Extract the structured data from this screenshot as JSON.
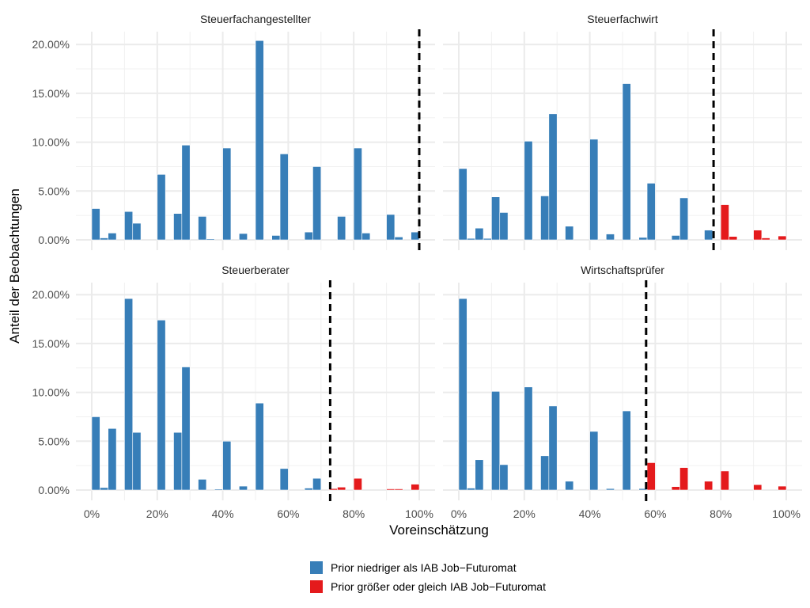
{
  "chart_data": {
    "type": "bar",
    "subtype": "faceted-histogram",
    "xlabel": "Voreinschätzung",
    "ylabel": "Anteil der Beobachtungen",
    "xlim": [
      0,
      100
    ],
    "ylim": [
      0,
      21
    ],
    "bin_width": 2.5,
    "x_ticks": [
      "0%",
      "20%",
      "40%",
      "60%",
      "80%",
      "100%"
    ],
    "x_tick_values": [
      0,
      20,
      40,
      60,
      80,
      100
    ],
    "y_ticks": [
      "0.00%",
      "5.00%",
      "10.00%",
      "15.00%",
      "20.00%"
    ],
    "y_tick_values": [
      0,
      5,
      10,
      15,
      20
    ],
    "grid": true,
    "legend": {
      "position": "bottom",
      "entries": [
        {
          "label": "Prior niedriger als IAB Job−Futuromat",
          "color": "#377eb8"
        },
        {
          "label": "Prior größer oder gleich IAB Job−Futuromat",
          "color": "#e41a1c"
        }
      ]
    },
    "reference_line": "dashed vertical line = IAB Job-Futuromat value",
    "panels": [
      {
        "title": "Steuerfachangestellter",
        "reference_x": 100,
        "bins": [
          {
            "x": 0,
            "value": 3.2,
            "group": 0
          },
          {
            "x": 2.5,
            "value": 0.2,
            "group": 0
          },
          {
            "x": 5,
            "value": 0.7,
            "group": 0
          },
          {
            "x": 10,
            "value": 2.9,
            "group": 0
          },
          {
            "x": 12.5,
            "value": 1.7,
            "group": 0
          },
          {
            "x": 20,
            "value": 6.7,
            "group": 0
          },
          {
            "x": 25,
            "value": 2.7,
            "group": 0
          },
          {
            "x": 27.5,
            "value": 9.7,
            "group": 0
          },
          {
            "x": 32.5,
            "value": 2.4,
            "group": 0
          },
          {
            "x": 35,
            "value": 0.1,
            "group": 0
          },
          {
            "x": 40,
            "value": 9.4,
            "group": 0
          },
          {
            "x": 45,
            "value": 0.65,
            "group": 0
          },
          {
            "x": 50,
            "value": 20.4,
            "group": 0
          },
          {
            "x": 55,
            "value": 0.45,
            "group": 0
          },
          {
            "x": 57.5,
            "value": 8.8,
            "group": 0
          },
          {
            "x": 65,
            "value": 0.8,
            "group": 0
          },
          {
            "x": 67.5,
            "value": 7.5,
            "group": 0
          },
          {
            "x": 75,
            "value": 2.4,
            "group": 0
          },
          {
            "x": 80,
            "value": 9.4,
            "group": 0
          },
          {
            "x": 82.5,
            "value": 0.7,
            "group": 0
          },
          {
            "x": 90,
            "value": 2.6,
            "group": 0
          },
          {
            "x": 92.5,
            "value": 0.3,
            "group": 0
          },
          {
            "x": 97.5,
            "value": 0.8,
            "group": 0
          }
        ]
      },
      {
        "title": "Steuerfachwirt",
        "reference_x": 77.8,
        "bins": [
          {
            "x": 0,
            "value": 7.3,
            "group": 0
          },
          {
            "x": 2.5,
            "value": 0.15,
            "group": 0
          },
          {
            "x": 5,
            "value": 1.2,
            "group": 0
          },
          {
            "x": 7.5,
            "value": 0.15,
            "group": 0
          },
          {
            "x": 10,
            "value": 4.4,
            "group": 0
          },
          {
            "x": 12.5,
            "value": 2.8,
            "group": 0
          },
          {
            "x": 20,
            "value": 10.1,
            "group": 0
          },
          {
            "x": 25,
            "value": 4.5,
            "group": 0
          },
          {
            "x": 27.5,
            "value": 12.9,
            "group": 0
          },
          {
            "x": 32.5,
            "value": 1.4,
            "group": 0
          },
          {
            "x": 40,
            "value": 10.3,
            "group": 0
          },
          {
            "x": 45,
            "value": 0.6,
            "group": 0
          },
          {
            "x": 50,
            "value": 16.0,
            "group": 0
          },
          {
            "x": 55,
            "value": 0.25,
            "group": 0
          },
          {
            "x": 57.5,
            "value": 5.8,
            "group": 0
          },
          {
            "x": 65,
            "value": 0.45,
            "group": 0
          },
          {
            "x": 67.5,
            "value": 4.3,
            "group": 0
          },
          {
            "x": 75,
            "value": 1.0,
            "group": 0
          },
          {
            "x": 80,
            "value": 3.6,
            "group": 1
          },
          {
            "x": 82.5,
            "value": 0.35,
            "group": 1
          },
          {
            "x": 90,
            "value": 1.0,
            "group": 1
          },
          {
            "x": 92.5,
            "value": 0.2,
            "group": 1
          },
          {
            "x": 97.5,
            "value": 0.4,
            "group": 1
          }
        ]
      },
      {
        "title": "Steuerberater",
        "reference_x": 72.8,
        "bins": [
          {
            "x": 0,
            "value": 7.5,
            "group": 0
          },
          {
            "x": 2.5,
            "value": 0.25,
            "group": 0
          },
          {
            "x": 5,
            "value": 6.3,
            "group": 0
          },
          {
            "x": 10,
            "value": 19.6,
            "group": 0
          },
          {
            "x": 12.5,
            "value": 5.9,
            "group": 0
          },
          {
            "x": 20,
            "value": 17.4,
            "group": 0
          },
          {
            "x": 25,
            "value": 5.9,
            "group": 0
          },
          {
            "x": 27.5,
            "value": 12.6,
            "group": 0
          },
          {
            "x": 32.5,
            "value": 1.1,
            "group": 0
          },
          {
            "x": 37.5,
            "value": 0.1,
            "group": 0
          },
          {
            "x": 40,
            "value": 5.0,
            "group": 0
          },
          {
            "x": 45,
            "value": 0.4,
            "group": 0
          },
          {
            "x": 50,
            "value": 8.9,
            "group": 0
          },
          {
            "x": 57.5,
            "value": 2.2,
            "group": 0
          },
          {
            "x": 65,
            "value": 0.2,
            "group": 0
          },
          {
            "x": 67.5,
            "value": 1.2,
            "group": 0
          },
          {
            "x": 72.5,
            "value": 0.15,
            "group": 1
          },
          {
            "x": 75,
            "value": 0.3,
            "group": 1
          },
          {
            "x": 80,
            "value": 1.2,
            "group": 1
          },
          {
            "x": 90,
            "value": 0.12,
            "group": 1
          },
          {
            "x": 92.5,
            "value": 0.12,
            "group": 1
          },
          {
            "x": 97.5,
            "value": 0.6,
            "group": 1
          }
        ]
      },
      {
        "title": "Wirtschaftsprüfer",
        "reference_x": 57.2,
        "bins": [
          {
            "x": 0,
            "value": 19.6,
            "group": 0
          },
          {
            "x": 2.5,
            "value": 0.2,
            "group": 0
          },
          {
            "x": 5,
            "value": 3.1,
            "group": 0
          },
          {
            "x": 10,
            "value": 10.1,
            "group": 0
          },
          {
            "x": 12.5,
            "value": 2.6,
            "group": 0
          },
          {
            "x": 20,
            "value": 10.55,
            "group": 0
          },
          {
            "x": 25,
            "value": 3.5,
            "group": 0
          },
          {
            "x": 27.5,
            "value": 8.6,
            "group": 0
          },
          {
            "x": 32.5,
            "value": 0.9,
            "group": 0
          },
          {
            "x": 40,
            "value": 6.0,
            "group": 0
          },
          {
            "x": 45,
            "value": 0.15,
            "group": 0
          },
          {
            "x": 50,
            "value": 8.1,
            "group": 0
          },
          {
            "x": 55,
            "value": 0.15,
            "group": 0
          },
          {
            "x": 57.5,
            "value": 2.8,
            "group": 1
          },
          {
            "x": 65,
            "value": 0.35,
            "group": 1
          },
          {
            "x": 67.5,
            "value": 2.3,
            "group": 1
          },
          {
            "x": 75,
            "value": 0.9,
            "group": 1
          },
          {
            "x": 80,
            "value": 1.95,
            "group": 1
          },
          {
            "x": 90,
            "value": 0.55,
            "group": 1
          },
          {
            "x": 97.5,
            "value": 0.4,
            "group": 1
          }
        ]
      }
    ]
  }
}
